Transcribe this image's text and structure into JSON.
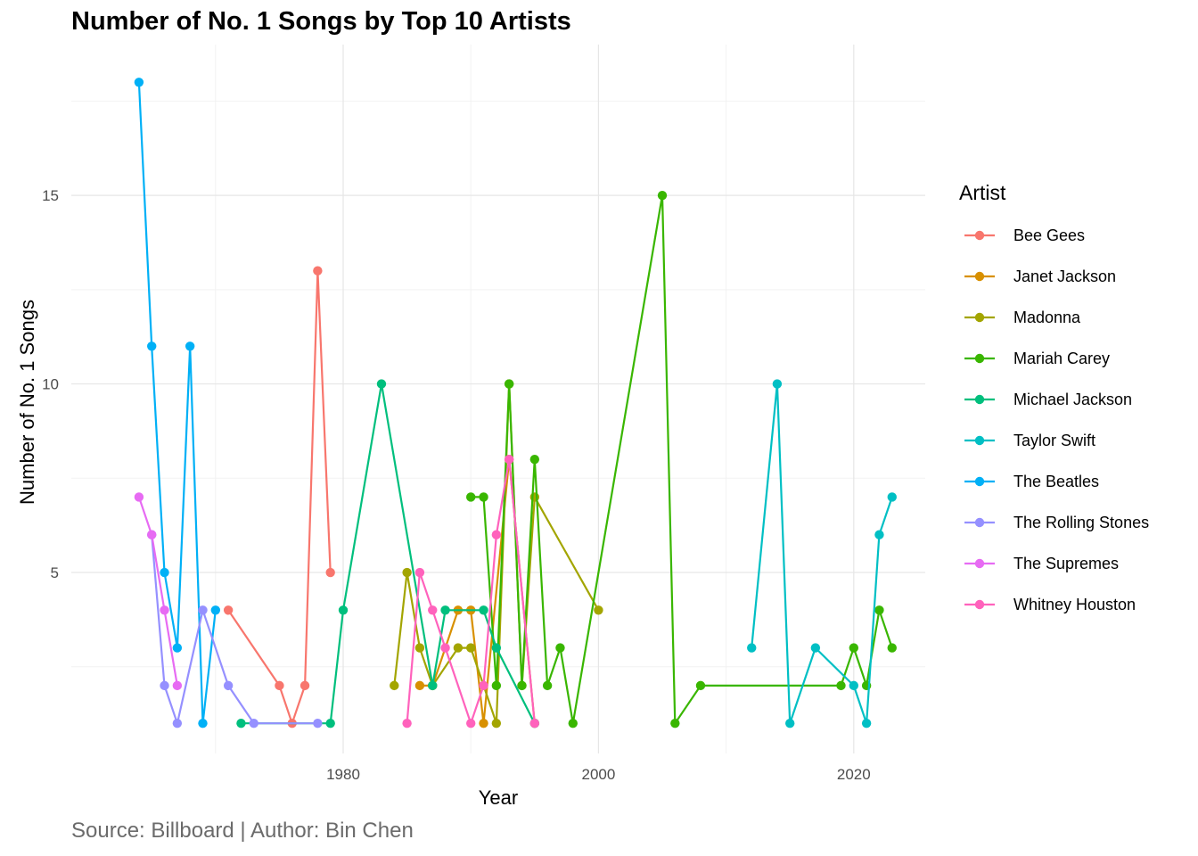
{
  "chart_data": {
    "type": "line",
    "title": "Number of No. 1 Songs by Top 10 Artists",
    "caption": "Source: Billboard | Author: Bin Chen",
    "xlabel": "Year",
    "ylabel": "Number of No. 1 Songs",
    "xlim": [
      1958.7,
      2025.6
    ],
    "ylim": [
      0.2,
      19.0
    ],
    "x_ticks": [
      1980,
      2000,
      2020
    ],
    "y_ticks": [
      5,
      10,
      15
    ],
    "grid": true,
    "legend_title": "Artist",
    "legend_position": "right",
    "series": [
      {
        "name": "Bee Gees",
        "color": "#F8766D",
        "points": [
          [
            1971,
            4
          ],
          [
            1975,
            2
          ],
          [
            1976,
            1
          ],
          [
            1977,
            2
          ],
          [
            1978,
            13
          ],
          [
            1979,
            5
          ]
        ]
      },
      {
        "name": "Janet Jackson",
        "color": "#D89000",
        "points": [
          [
            1986,
            2
          ],
          [
            1987,
            2
          ],
          [
            1989,
            4
          ],
          [
            1990,
            4
          ],
          [
            1991,
            1
          ],
          [
            1993,
            8
          ],
          [
            1995,
            1
          ]
        ]
      },
      {
        "name": "Madonna",
        "color": "#A3A500",
        "points": [
          [
            1984,
            2
          ],
          [
            1985,
            5
          ],
          [
            1986,
            3
          ],
          [
            1987,
            2
          ],
          [
            1989,
            3
          ],
          [
            1990,
            3
          ],
          [
            1992,
            1
          ],
          [
            1993,
            10
          ],
          [
            1994,
            2
          ],
          [
            1995,
            7
          ],
          [
            2000,
            4
          ]
        ]
      },
      {
        "name": "Mariah Carey",
        "color": "#39B600",
        "points": [
          [
            1990,
            7
          ],
          [
            1991,
            7
          ],
          [
            1992,
            2
          ],
          [
            1993,
            10
          ],
          [
            1994,
            2
          ],
          [
            1995,
            8
          ],
          [
            1996,
            2
          ],
          [
            1997,
            3
          ],
          [
            1998,
            1
          ],
          [
            2005,
            15
          ],
          [
            2006,
            1
          ],
          [
            2008,
            2
          ],
          [
            2019,
            2
          ],
          [
            2020,
            3
          ],
          [
            2021,
            2
          ],
          [
            2022,
            4
          ],
          [
            2023,
            3
          ]
        ]
      },
      {
        "name": "Michael Jackson",
        "color": "#00BF7D",
        "points": [
          [
            1972,
            1
          ],
          [
            1979,
            1
          ],
          [
            1980,
            4
          ],
          [
            1983,
            10
          ],
          [
            1987,
            2
          ],
          [
            1988,
            4
          ],
          [
            1991,
            4
          ],
          [
            1992,
            3
          ],
          [
            1995,
            1
          ]
        ]
      },
      {
        "name": "Taylor Swift",
        "color": "#00BFC4",
        "points": [
          [
            2012,
            3
          ],
          [
            2014,
            10
          ],
          [
            2015,
            1
          ],
          [
            2017,
            3
          ],
          [
            2020,
            2
          ],
          [
            2021,
            1
          ],
          [
            2022,
            6
          ],
          [
            2023,
            7
          ]
        ]
      },
      {
        "name": "The Beatles",
        "color": "#00B0F6",
        "points": [
          [
            1964,
            18
          ],
          [
            1965,
            11
          ],
          [
            1966,
            5
          ],
          [
            1967,
            3
          ],
          [
            1968,
            11
          ],
          [
            1969,
            1
          ],
          [
            1970,
            4
          ]
        ]
      },
      {
        "name": "The Rolling Stones",
        "color": "#9590FF",
        "points": [
          [
            1965,
            6
          ],
          [
            1966,
            2
          ],
          [
            1967,
            1
          ],
          [
            1969,
            4
          ],
          [
            1971,
            2
          ],
          [
            1973,
            1
          ],
          [
            1978,
            1
          ]
        ]
      },
      {
        "name": "The Supremes",
        "color": "#E76BF3",
        "points": [
          [
            1964,
            7
          ],
          [
            1965,
            6
          ],
          [
            1966,
            4
          ],
          [
            1967,
            2
          ]
        ]
      },
      {
        "name": "Whitney Houston",
        "color": "#FF62BC",
        "points": [
          [
            1985,
            1
          ],
          [
            1986,
            5
          ],
          [
            1987,
            4
          ],
          [
            1988,
            3
          ],
          [
            1990,
            1
          ],
          [
            1991,
            2
          ],
          [
            1992,
            6
          ],
          [
            1993,
            8
          ],
          [
            1995,
            1
          ]
        ]
      }
    ]
  }
}
